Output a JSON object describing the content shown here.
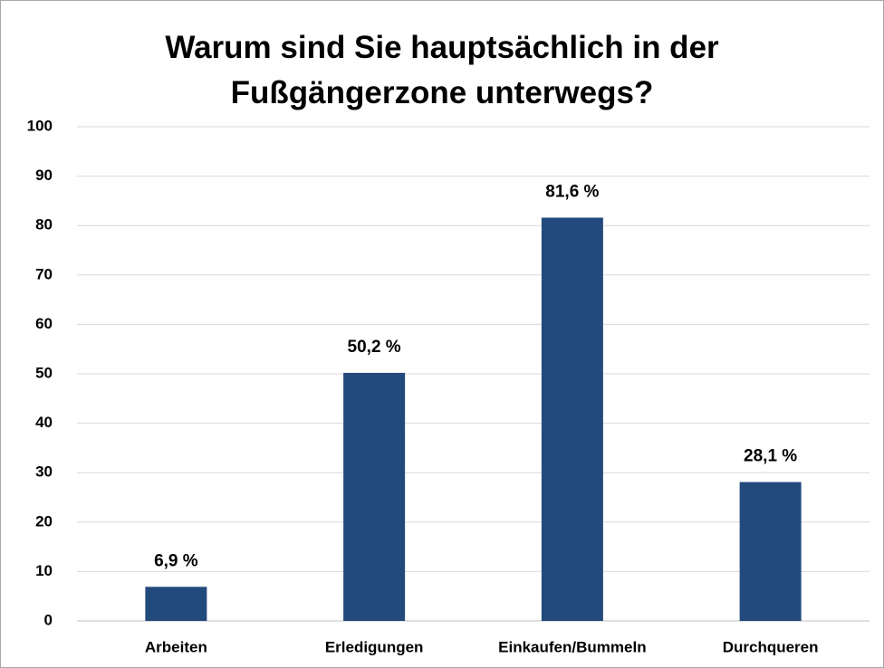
{
  "chart_data": {
    "type": "bar",
    "title": "Warum sind Sie hauptsächlich in der Fußgängerzone unterwegs?",
    "categories": [
      "Arbeiten",
      "Erledigungen",
      "Einkaufen/Bummeln",
      "Durchqueren"
    ],
    "values": [
      6.9,
      50.2,
      81.6,
      28.1
    ],
    "value_labels": [
      "6,9 %",
      "50,2 %",
      "81,6 %",
      "28,1 %"
    ],
    "color": "#234a7c",
    "ylim": [
      0,
      100
    ],
    "yticks": [
      0,
      10,
      20,
      30,
      40,
      50,
      60,
      70,
      80,
      90,
      100
    ],
    "grid": true
  }
}
